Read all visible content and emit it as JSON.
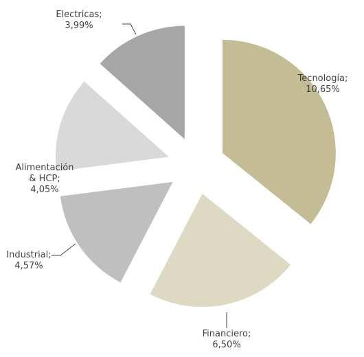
{
  "chart_data": {
    "type": "pie",
    "categories": [
      "Tecnología;",
      "Financiero;",
      "Industrial;",
      "Alimentación & HCP;",
      "Electricas;"
    ],
    "values": [
      10.65,
      6.5,
      4.57,
      4.05,
      3.99
    ],
    "value_labels": [
      "10,65%",
      "6,50%",
      "4,57%",
      "4,05%",
      "3,99%"
    ],
    "colors": [
      "#c4bc94",
      "#ddd9c3",
      "#bfbfbf",
      "#d9d9d9",
      "#a6a6a6"
    ]
  }
}
